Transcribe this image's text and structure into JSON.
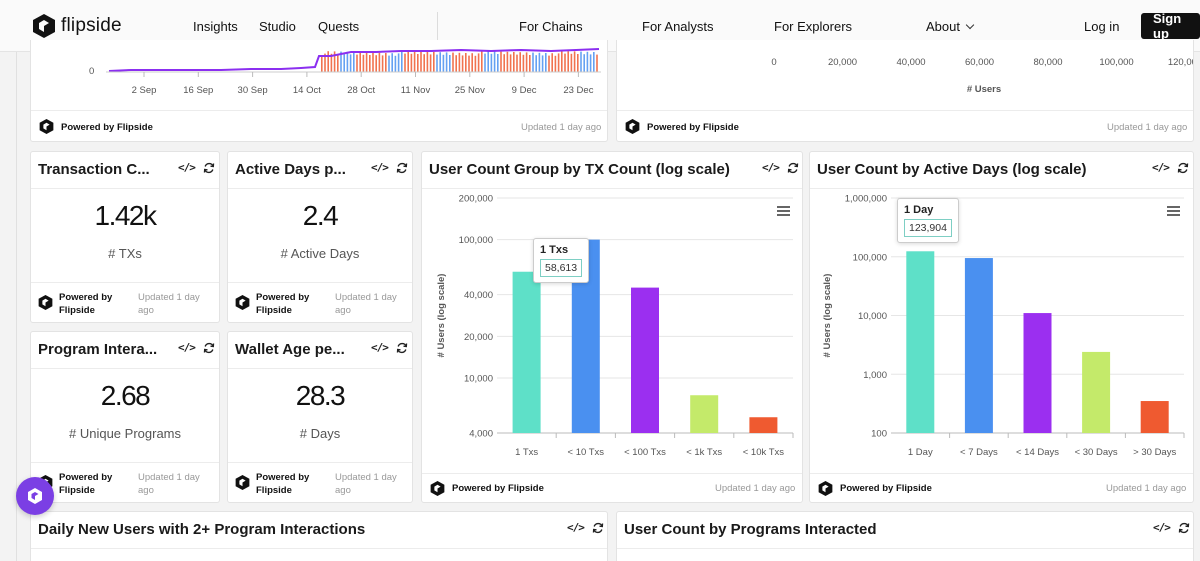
{
  "brand": {
    "name": "flipside"
  },
  "nav": {
    "links": [
      "Insights",
      "Studio",
      "Quests",
      "For Chains",
      "For Analysts",
      "For Explorers",
      "About"
    ],
    "login": "Log in",
    "signup": "Sign up"
  },
  "common": {
    "powered_by": "Powered by Flipside",
    "powered_by_line1": "Powered by",
    "powered_by_line2": "Flipside",
    "updated": "Updated 1 day ago",
    "updated_line1": "Updated 1 day",
    "updated_line2": "ago"
  },
  "top_left_chart": {
    "y_tick": "0",
    "x_ticks": [
      "2 Sep",
      "16 Sep",
      "30 Sep",
      "14 Oct",
      "28 Oct",
      "11 Nov",
      "25 Nov",
      "9 Dec",
      "23 Dec"
    ]
  },
  "top_right_chart": {
    "x_ticks": [
      "0",
      "20,000",
      "40,000",
      "60,000",
      "80,000",
      "100,000",
      "120,000"
    ],
    "x_label": "# Users"
  },
  "kpis": [
    {
      "title": "Transaction C...",
      "value": "1.42k",
      "label": "# TXs"
    },
    {
      "title": "Active Days p...",
      "value": "2.4",
      "label": "# Active Days"
    },
    {
      "title": "Program Intera...",
      "value": "2.68",
      "label": "# Unique Programs"
    },
    {
      "title": "Wallet Age pe...",
      "value": "28.3",
      "label": "# Days"
    }
  ],
  "tx_chart": {
    "title": "User Count Group by TX Count (log scale)",
    "y_axis_label": "# Users (log scale)",
    "y_ticks": [
      "200,000",
      "100,000",
      "40,000",
      "20,000",
      "10,000",
      "4,000"
    ],
    "tooltip": {
      "title": "1 Txs",
      "value": "58,613"
    }
  },
  "days_chart": {
    "title": "User Count by Active Days (log scale)",
    "y_axis_label": "# Users (log scale)",
    "y_ticks": [
      "1,000,000",
      "100,000",
      "10,000",
      "1,000",
      "100"
    ],
    "tooltip": {
      "title": "1 Day",
      "value": "123,904"
    }
  },
  "bottom": {
    "left_title": "Daily New Users with 2+ Program Interactions",
    "right_title": "User Count by Programs Interacted"
  },
  "chart_data": [
    {
      "type": "bar",
      "title": "User Count Group by TX Count (log scale)",
      "ylabel": "# Users (log scale)",
      "yscale": "log",
      "ylim": [
        4000,
        200000
      ],
      "categories": [
        "1 Txs",
        "< 10 Txs",
        "< 100 Txs",
        "< 1k Txs",
        "< 10k Txs"
      ],
      "values": [
        58613,
        100000,
        45000,
        7500,
        5200
      ],
      "colors": [
        "#5ee0c8",
        "#4a90f0",
        "#9b2ff0",
        "#c4ea6a",
        "#ef5a30"
      ]
    },
    {
      "type": "bar",
      "title": "User Count by Active Days (log scale)",
      "ylabel": "# Users (log scale)",
      "yscale": "log",
      "ylim": [
        100,
        1000000
      ],
      "categories": [
        "1 Day",
        "< 7 Days",
        "< 14 Days",
        "< 30 Days",
        "> 30 Days"
      ],
      "values": [
        123904,
        95000,
        11000,
        2400,
        350
      ],
      "colors": [
        "#5ee0c8",
        "#4a90f0",
        "#9b2ff0",
        "#c4ea6a",
        "#ef5a30"
      ]
    }
  ]
}
